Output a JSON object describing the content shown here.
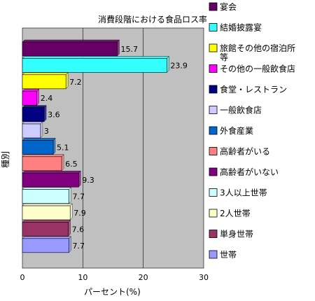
{
  "chart_data": {
    "type": "bar",
    "orientation": "horizontal",
    "title": "消費段階における食品ロス率(%)",
    "xlabel": "パーセント(%)",
    "ylabel": "種別",
    "xlim": [
      0,
      30
    ],
    "xticks": [
      "0",
      "10",
      "20",
      "30"
    ],
    "grid": true,
    "legend_position": "right",
    "plot_background": "#c0c0c0",
    "categories": [
      "宴会",
      "結婚披露宴",
      "旅館その他の宿泊所等",
      "その他の一般飲食店",
      "食堂・レストラン",
      "一般飲食店",
      "外食産業",
      "高齢者がいる",
      "高齢者がいない",
      "3人以上世帯",
      "2人世帯",
      "単身世帯",
      "世帯"
    ],
    "values": [
      15.7,
      23.9,
      7.2,
      2.4,
      3.6,
      3,
      5.1,
      6.5,
      9.3,
      7.7,
      7.9,
      7.6,
      7.7
    ],
    "data_labels": [
      "15.7",
      "23.9",
      "7.2",
      "2.4",
      "3.6",
      "3",
      "5.1",
      "6.5",
      "9.3",
      "7.7",
      "7.9",
      "7.6",
      "7.7"
    ],
    "colors": [
      "#660066",
      "#33ffff",
      "#ffff00",
      "#ff00ff",
      "#000080",
      "#ccccff",
      "#0066cc",
      "#ff8080",
      "#800080",
      "#ccffff",
      "#ffffcc",
      "#993366",
      "#9999ff"
    ]
  }
}
